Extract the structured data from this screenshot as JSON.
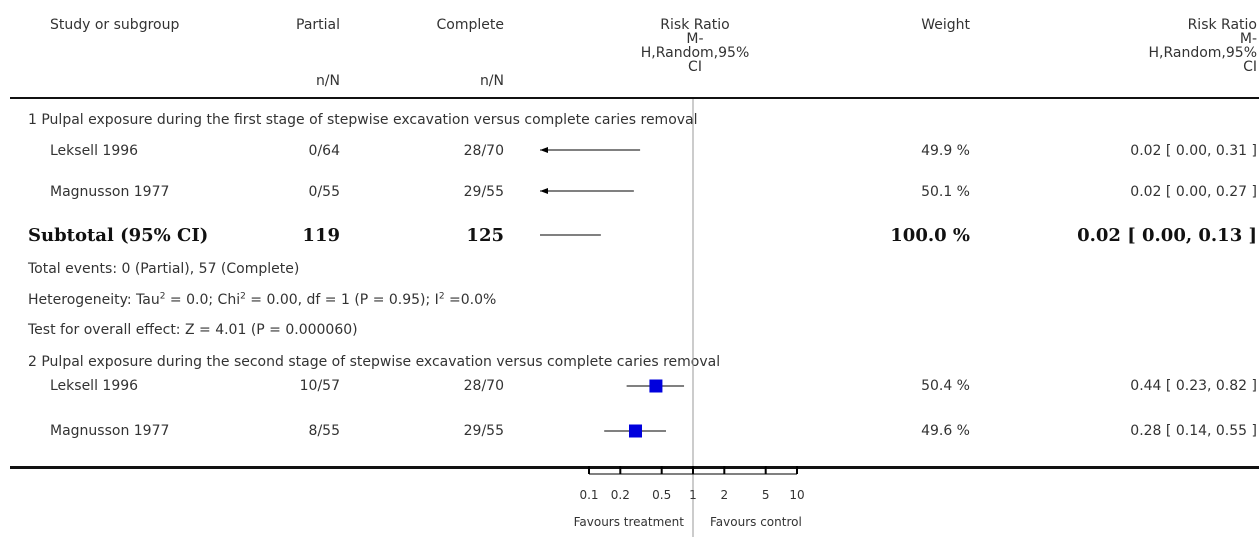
{
  "header": {
    "study": "Study or subgroup",
    "col1": "Partial",
    "col1_sub": "n/N",
    "col2": "Complete",
    "col2_sub": "n/N",
    "rr_lines": [
      "Risk Ratio",
      "M-",
      "H,Random,95%",
      "CI"
    ],
    "weight": "Weight",
    "rr2_lines": [
      "Risk Ratio",
      "M-",
      "H,Random,95%",
      "CI"
    ]
  },
  "groups": [
    {
      "title": "1 Pulpal exposure during the first stage of stepwise excavation versus complete caries removal",
      "rows": [
        {
          "study": "Leksell 1996",
          "partial": "0/64",
          "complete": "28/70",
          "weight": "49.9 %",
          "ci_text": "0.02 [ 0.00, 0.31 ]"
        },
        {
          "study": "Magnusson 1977",
          "partial": "0/55",
          "complete": "29/55",
          "weight": "50.1 %",
          "ci_text": "0.02 [ 0.00, 0.27 ]"
        }
      ],
      "subtotal": {
        "label": "Subtotal (95% CI)",
        "partial": "119",
        "complete": "125",
        "weight": "100.0 %",
        "ci_text": "0.02 [ 0.00, 0.13 ]"
      },
      "total_events": "Total events: 0 (Partial), 57 (Complete)",
      "heterogeneity": {
        "p1": "Heterogeneity: Tau",
        "s1": "2",
        "p2": " = 0.0; Chi",
        "s2": "2",
        "p3": " = 0.00, df = 1 (P = 0.95); I",
        "s3": "2",
        "p4": " =0.0%"
      },
      "overall": "Test for overall effect: Z = 4.01 (P = 0.000060)"
    },
    {
      "title": "2 Pulpal exposure during the second stage of stepwise excavation versus complete caries removal",
      "rows": [
        {
          "study": "Leksell 1996",
          "partial": "10/57",
          "complete": "28/70",
          "weight": "50.4 %",
          "ci_text": "0.44 [ 0.23, 0.82 ]"
        },
        {
          "study": "Magnusson 1977",
          "partial": "8/55",
          "complete": "29/55",
          "weight": "49.6 %",
          "ci_text": "0.28 [ 0.14, 0.55 ]"
        }
      ]
    }
  ],
  "axis": {
    "favours_left": "Favours treatment",
    "favours_right": "Favours control"
  },
  "colors": {
    "box": "#0000dd",
    "line": "#000000",
    "ref": "#999999"
  },
  "chart_data": {
    "type": "forest",
    "scale": "log",
    "xlim": [
      0.1,
      10
    ],
    "ticks": [
      0.1,
      0.2,
      0.5,
      1,
      2,
      5,
      10
    ],
    "tick_labels": [
      "0.1",
      "0.2",
      "0.5",
      "1",
      "2",
      "5",
      "10"
    ],
    "reference": 1,
    "points": [
      {
        "study": "Leksell 1996",
        "group": 1,
        "rr": 0.02,
        "lo": 0.0,
        "hi": 0.31,
        "weight": 49.9
      },
      {
        "study": "Magnusson 1977",
        "group": 1,
        "rr": 0.02,
        "lo": 0.0,
        "hi": 0.27,
        "weight": 50.1
      },
      {
        "study": "Subtotal (95% CI)",
        "group": 1,
        "rr": 0.02,
        "lo": 0.0,
        "hi": 0.13,
        "weight": 100.0,
        "subtotal": true
      },
      {
        "study": "Leksell 1996",
        "group": 2,
        "rr": 0.44,
        "lo": 0.23,
        "hi": 0.82,
        "weight": 50.4
      },
      {
        "study": "Magnusson 1977",
        "group": 2,
        "rr": 0.28,
        "lo": 0.14,
        "hi": 0.55,
        "weight": 49.6
      }
    ]
  }
}
